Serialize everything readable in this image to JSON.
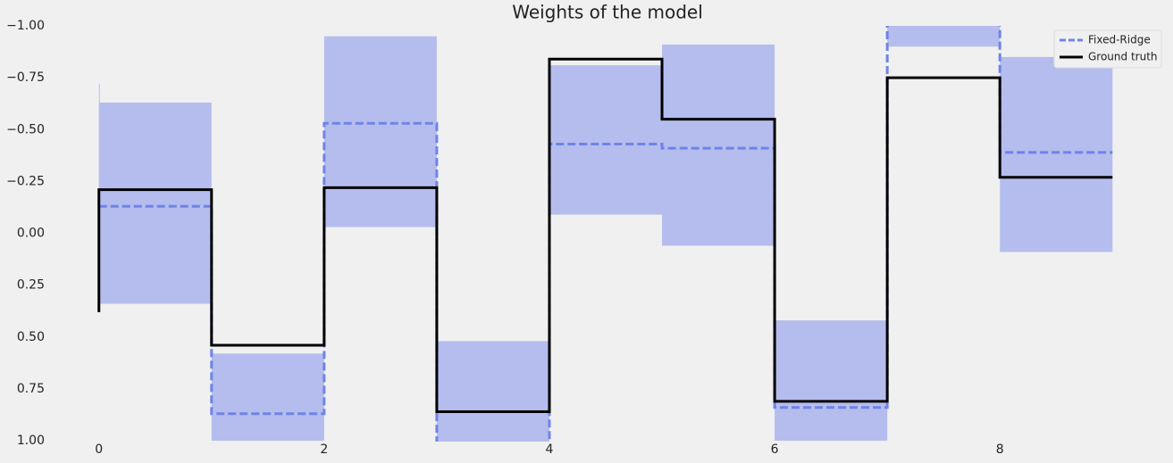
{
  "chart_data": {
    "type": "step",
    "title": "Weights of the model",
    "x": [
      0,
      1,
      2,
      3,
      4,
      5,
      6,
      7,
      8,
      9
    ],
    "xlim": [
      -0.45,
      9.45
    ],
    "xticks": [
      0,
      2,
      4,
      6,
      8
    ],
    "ylim": [
      -1.0,
      1.0
    ],
    "y_inverted": true,
    "yticks": [
      {
        "value": -1.0,
        "label": "−1.00"
      },
      {
        "value": -0.75,
        "label": "−0.75"
      },
      {
        "value": -0.5,
        "label": "−0.50"
      },
      {
        "value": -0.25,
        "label": "−0.25"
      },
      {
        "value": 0.0,
        "label": "0.00"
      },
      {
        "value": 0.25,
        "label": "0.25"
      },
      {
        "value": 0.5,
        "label": "0.50"
      },
      {
        "value": 0.75,
        "label": "0.75"
      },
      {
        "value": 1.0,
        "label": "1.00"
      }
    ],
    "band": {
      "color": "#b4bded",
      "lower": [
        -0.72,
        -0.63,
        0.58,
        -0.95,
        0.52,
        -0.81,
        -0.91,
        0.42,
        -1.05,
        -0.85
      ],
      "upper": [
        0.34,
        0.34,
        1.0,
        -0.03,
        1.05,
        -0.09,
        0.06,
        1.0,
        -0.9,
        0.09
      ]
    },
    "series": [
      {
        "name": "Fixed-Ridge",
        "color": "#6f83ea",
        "dashed": true,
        "values": [
          -0.13,
          -0.13,
          0.87,
          -0.53,
          1.05,
          -0.43,
          -0.41,
          0.84,
          -1.05,
          -0.39
        ]
      },
      {
        "name": "Ground truth",
        "color": "#000000",
        "dashed": false,
        "values": [
          0.38,
          -0.21,
          0.54,
          -0.22,
          0.86,
          -0.84,
          -0.55,
          0.81,
          -0.75,
          -0.27
        ]
      }
    ],
    "legend": "upper right"
  }
}
